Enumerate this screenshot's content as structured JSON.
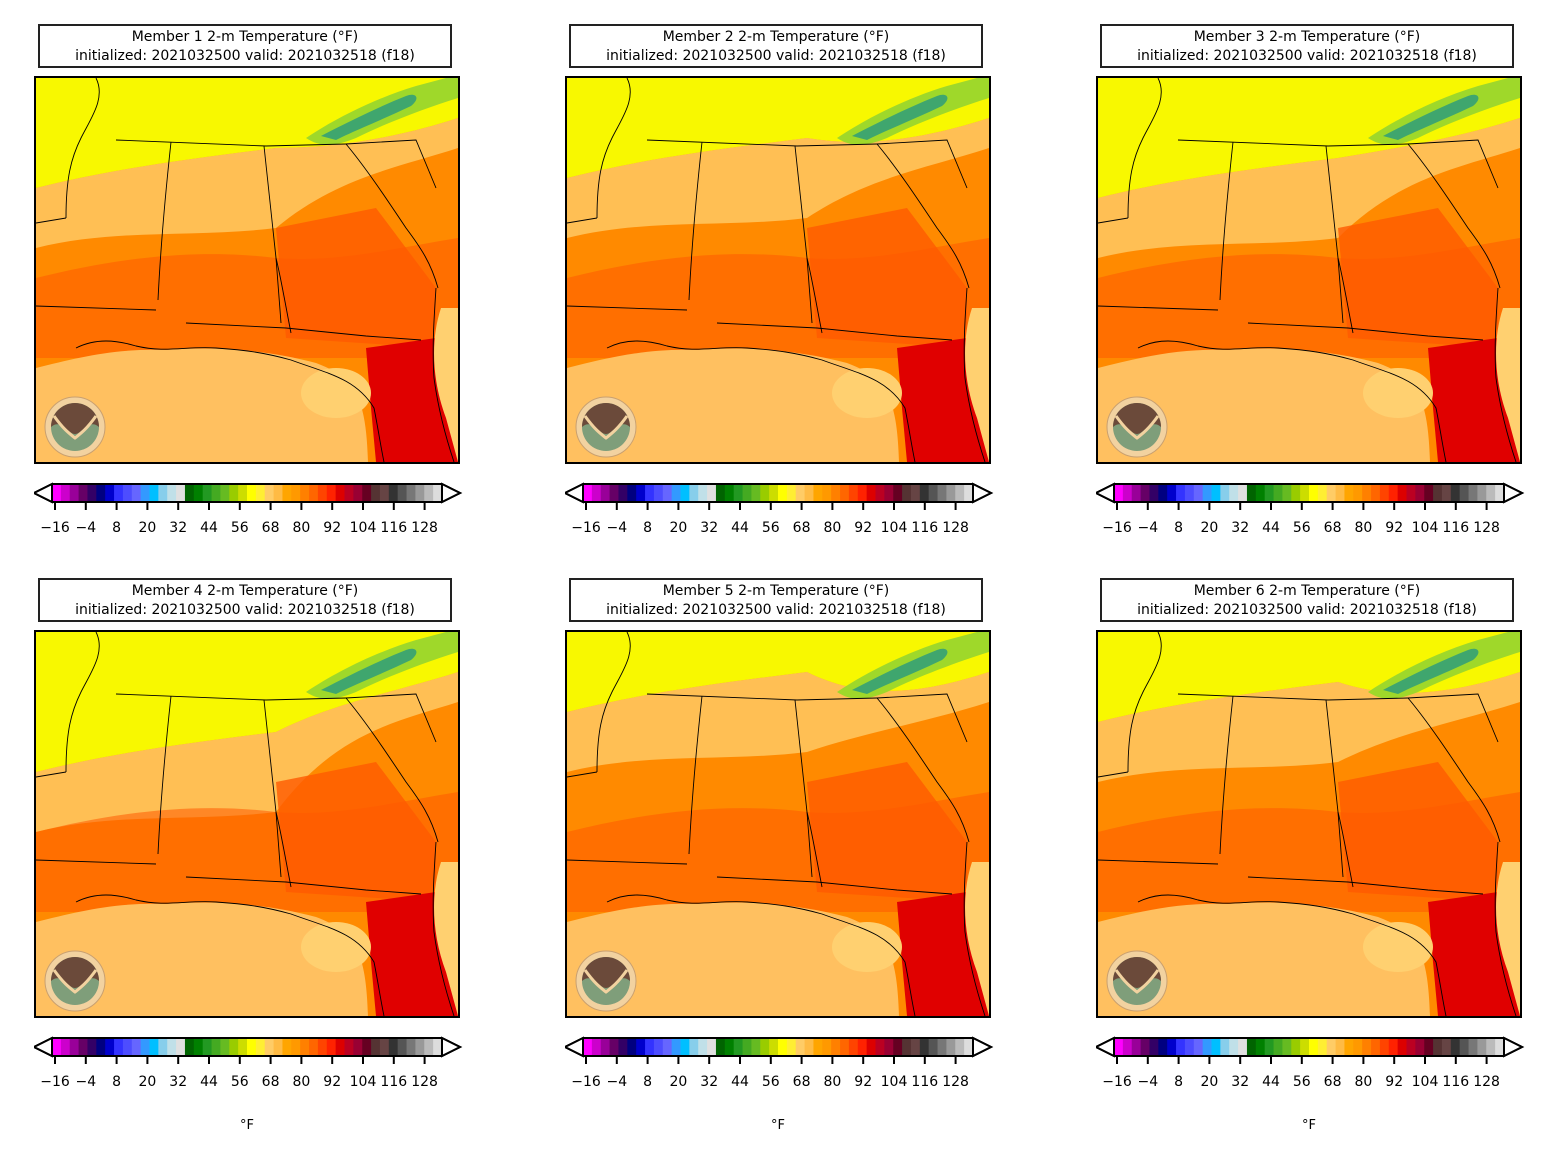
{
  "panels": [
    {
      "title": "Member 1 2-m Temperature (°F)",
      "subtitle": "initialized: 2021032500 valid: 2021032518 (f18)",
      "show_unit": false
    },
    {
      "title": "Member 2 2-m Temperature (°F)",
      "subtitle": "initialized: 2021032500 valid: 2021032518 (f18)",
      "show_unit": false
    },
    {
      "title": "Member 3 2-m Temperature (°F)",
      "subtitle": "initialized: 2021032500 valid: 2021032518 (f18)",
      "show_unit": false
    },
    {
      "title": "Member 4 2-m Temperature (°F)",
      "subtitle": "initialized: 2021032500 valid: 2021032518 (f18)",
      "show_unit": true
    },
    {
      "title": "Member 5 2-m Temperature (°F)",
      "subtitle": "initialized: 2021032500 valid: 2021032518 (f18)",
      "show_unit": true
    },
    {
      "title": "Member 6 2-m Temperature (°F)",
      "subtitle": "initialized: 2021032500 valid: 2021032518 (f18)",
      "show_unit": true
    }
  ],
  "colorbar": {
    "unit": "°F",
    "tick_labels": [
      "−16",
      "−4",
      "8",
      "20",
      "32",
      "44",
      "56",
      "68",
      "80",
      "92",
      "104",
      "116",
      "128"
    ],
    "colors": [
      "#ff00ff",
      "#cc00cc",
      "#990099",
      "#660066",
      "#330066",
      "#000080",
      "#0000cc",
      "#3333ff",
      "#4d4dff",
      "#6666ff",
      "#3399ff",
      "#00bfff",
      "#87ceeb",
      "#c0e0e8",
      "#e0e0e0",
      "#006400",
      "#008000",
      "#229922",
      "#44aa22",
      "#66bb22",
      "#99cc00",
      "#ccdd00",
      "#ffff00",
      "#ffee33",
      "#ffcc66",
      "#ffbb44",
      "#ffa500",
      "#ff9900",
      "#ff8000",
      "#ff6600",
      "#ff4400",
      "#ff2200",
      "#dd0000",
      "#bb0022",
      "#990033",
      "#660022",
      "#553333",
      "#664444",
      "#333333",
      "#555555",
      "#777777",
      "#999999",
      "#bbbbbb",
      "#dddddd"
    ]
  },
  "logo": {
    "text": "NOAA"
  },
  "map_colors": {
    "hot": "#e00000",
    "warm": "#ff5a00",
    "mild": "#ff8a00",
    "cool": "#ffb347",
    "cooler": "#ffd070",
    "yellow": "#f8f800",
    "green": "#9fd82a",
    "teal": "#2e9e7a",
    "gulf": "#ffc060"
  }
}
